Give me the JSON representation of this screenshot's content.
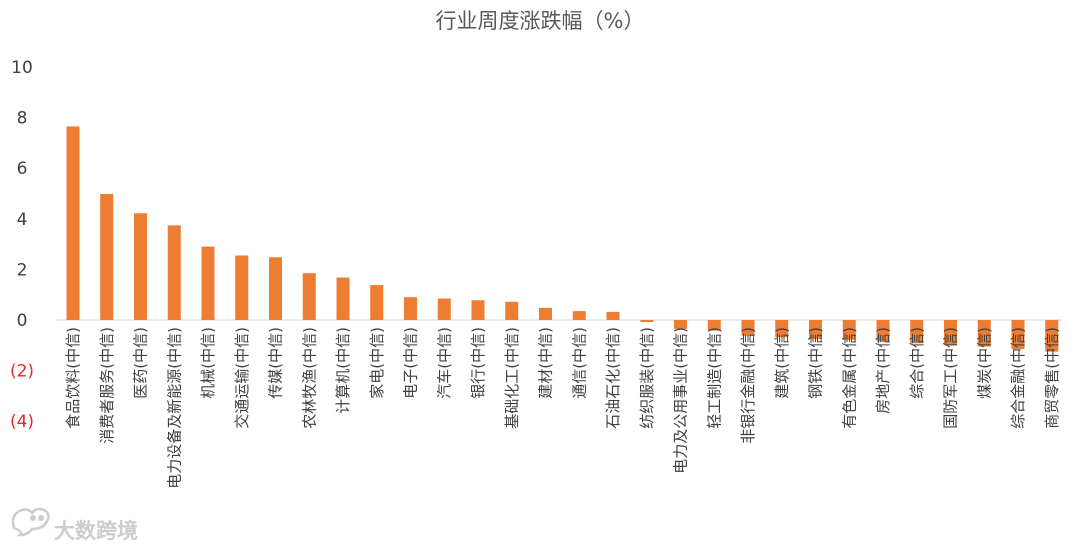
{
  "chart_data": {
    "type": "bar",
    "title": "行业周度涨跌幅（%）",
    "xlabel": "",
    "ylabel": "",
    "ylim": [
      -4,
      10
    ],
    "yticks": [
      10,
      8,
      6,
      4,
      2,
      0,
      -2,
      -4
    ],
    "ytick_labels": [
      "10",
      "8",
      "6",
      "4",
      "2",
      "0",
      "(2)",
      "(4)"
    ],
    "negative_tick_color": "#e3292c",
    "positive_tick_color": "#404040",
    "bar_color": "#ed7d31",
    "grid": false,
    "legend": "none",
    "categories": [
      "食品饮料(中信)",
      "消费者服务(中信)",
      "医药(中信)",
      "电力设备及新能源(中信)",
      "机械(中信)",
      "交通运输(中信)",
      "传媒(中信)",
      "农林牧渔(中信)",
      "计算机(中信)",
      "家电(中信)",
      "电子(中信)",
      "汽车(中信)",
      "银行(中信)",
      "基础化工(中信)",
      "建材(中信)",
      "通信(中信)",
      "石油石化(中信)",
      "纺织服装(中信)",
      "电力及公用事业(中信)",
      "轻工制造(中信)",
      "非银行金融(中信)",
      "建筑(中信)",
      "钢铁(中信)",
      "有色金属(中信)",
      "房地产(中信)",
      "综合(中信)",
      "国防军工(中信)",
      "煤炭(中信)",
      "综合金融(中信)",
      "商贸零售(中信)"
    ],
    "values": [
      7.65,
      4.98,
      4.22,
      3.74,
      2.9,
      2.55,
      2.48,
      1.85,
      1.68,
      1.38,
      0.9,
      0.85,
      0.78,
      0.72,
      0.48,
      0.35,
      0.32,
      -0.08,
      -0.35,
      -0.42,
      -0.62,
      -0.68,
      -0.75,
      -0.78,
      -0.85,
      -0.92,
      -1.0,
      -1.05,
      -1.15,
      -1.25
    ]
  },
  "watermark": {
    "text": "大数跨境",
    "icon": "bubble-logo-icon"
  }
}
